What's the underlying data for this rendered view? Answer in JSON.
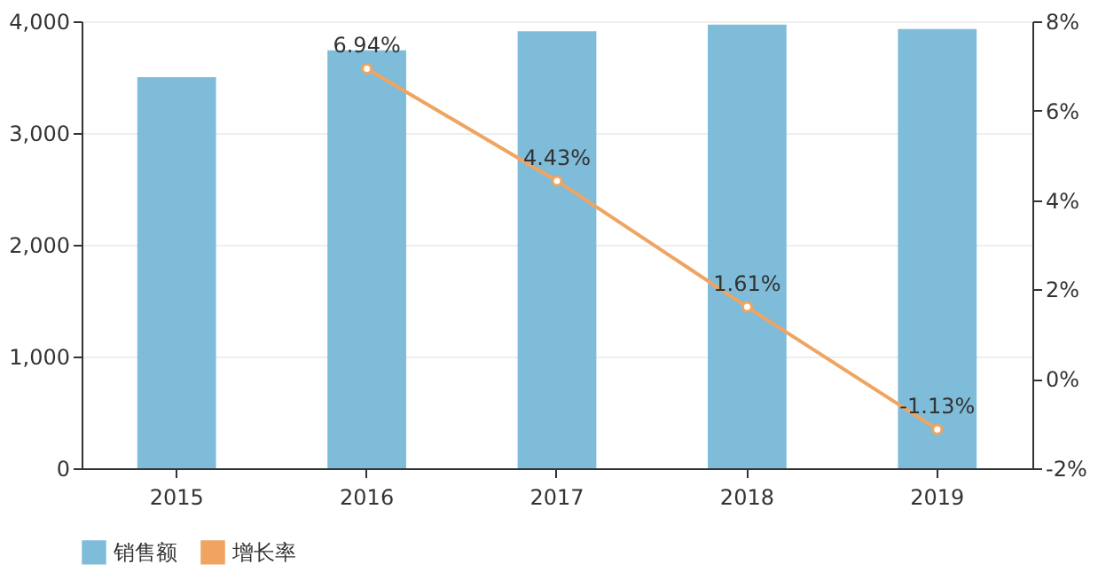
{
  "chart_data": {
    "type": "bar",
    "categories": [
      "2015",
      "2016",
      "2017",
      "2018",
      "2019"
    ],
    "series": [
      {
        "name": "销售额",
        "color": "#7ebcda",
        "values": [
          3500,
          3740,
          3910,
          3970,
          3930
        ]
      },
      {
        "name": "增长率",
        "type": "line",
        "axis": "y2",
        "color": "#f0a462",
        "marker": "circle",
        "values": [
          null,
          6.94,
          4.43,
          1.61,
          -1.13
        ],
        "value_labels": [
          null,
          "6.94%",
          "4.43%",
          "1.61%",
          "-1.13%"
        ]
      }
    ],
    "ylim": [
      0,
      4000
    ],
    "yticks": [
      {
        "value": 0,
        "label": "0"
      },
      {
        "value": 1000,
        "label": "1,000"
      },
      {
        "value": 2000,
        "label": "2,000"
      },
      {
        "value": 3000,
        "label": "3,000"
      },
      {
        "value": 4000,
        "label": "4,000"
      }
    ],
    "y2lim": [
      -2,
      8
    ],
    "y2ticks": [
      {
        "value": -2,
        "label": "-2%"
      },
      {
        "value": 0,
        "label": "0%"
      },
      {
        "value": 2,
        "label": "2%"
      },
      {
        "value": 4,
        "label": "4%"
      },
      {
        "value": 6,
        "label": "6%"
      },
      {
        "value": 8,
        "label": "8%"
      }
    ],
    "grid": "y",
    "legend": "bottom"
  }
}
